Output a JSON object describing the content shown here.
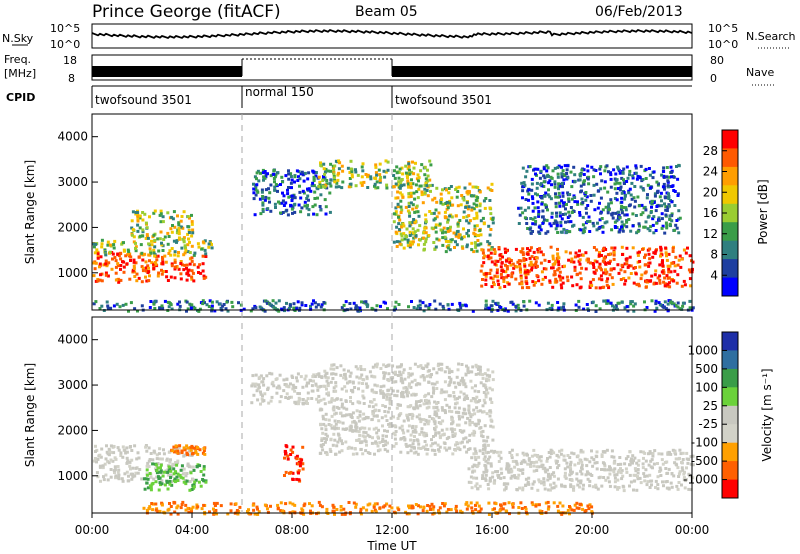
{
  "header": {
    "station": "Prince George (fitACF)",
    "beam": "Beam 05",
    "date": "06/Feb/2013"
  },
  "noise_panel": {
    "left_label": "N.Sky",
    "left_ticks": [
      "10^5",
      "10^0"
    ],
    "right_label": "N.Search",
    "right_ticks": [
      "10^5",
      "10^0"
    ]
  },
  "freq_panel": {
    "left_label_1": "Freq.",
    "left_label_2": "[MHz]",
    "left_ticks": [
      "18",
      "8"
    ],
    "right_label": "Nave",
    "right_ticks": [
      "80",
      "0"
    ]
  },
  "cpid": {
    "label": "CPID",
    "segments": [
      {
        "name": "twofsound 3501",
        "start_hour": 0,
        "end_hour": 6
      },
      {
        "name": "normal 150",
        "start_hour": 6,
        "end_hour": 12
      },
      {
        "name": "twofsound 3501",
        "start_hour": 12,
        "end_hour": 24
      }
    ]
  },
  "x_axis": {
    "label": "Time UT",
    "ticks": [
      "00:00",
      "04:00",
      "08:00",
      "12:00",
      "16:00",
      "20:00",
      "00:00"
    ]
  },
  "power_colorbar": {
    "label": "Power [dB]",
    "ticks": [
      "28",
      "24",
      "20",
      "16",
      "12",
      "8",
      "4"
    ],
    "colors": [
      "#ff0000",
      "#ff5a00",
      "#ff9e00",
      "#f0c800",
      "#9acd32",
      "#3a9d48",
      "#2f7f7f",
      "#1e3fa0",
      "#0000ff"
    ]
  },
  "velocity_colorbar": {
    "label": "Velocity [m s⁻¹]",
    "ticks": [
      "1000",
      "500",
      "100",
      "25",
      "-25",
      "-100",
      "-500",
      "-1000"
    ],
    "colors": [
      "#1e2fa8",
      "#2f6fa0",
      "#3a9d48",
      "#6bd23a",
      "#c8c8c0",
      "#d2d2c8",
      "#ffa000",
      "#ff6000",
      "#ff0000"
    ]
  },
  "chart_data": [
    {
      "type": "heatmap",
      "title": "Power",
      "xlabel": "Time UT",
      "ylabel": "Slant Range [km]",
      "xlim": [
        0,
        24
      ],
      "ylim": [
        180,
        4500
      ],
      "yticks": [
        1000,
        2000,
        3000,
        4000
      ],
      "xticks": [
        0,
        4,
        8,
        12,
        16,
        20,
        24
      ],
      "regions": [
        {
          "t0": 0.0,
          "t1": 2.2,
          "r0": 800,
          "r1": 1500,
          "level": "high"
        },
        {
          "t0": 2.2,
          "t1": 4.5,
          "r0": 850,
          "r1": 1400,
          "level": "high"
        },
        {
          "t0": 0.0,
          "t1": 4.8,
          "r0": 1400,
          "r1": 1750,
          "level": "mid"
        },
        {
          "t0": 1.5,
          "t1": 4.0,
          "r0": 1750,
          "r1": 2400,
          "level": "mid"
        },
        {
          "t0": 6.4,
          "t1": 9.5,
          "r0": 2300,
          "r1": 3300,
          "level": "low"
        },
        {
          "t0": 9.0,
          "t1": 13.5,
          "r0": 2900,
          "r1": 3500,
          "level": "mid"
        },
        {
          "t0": 12.0,
          "t1": 16.0,
          "r0": 1500,
          "r1": 3000,
          "level": "mid"
        },
        {
          "t0": 15.5,
          "t1": 24.0,
          "r0": 700,
          "r1": 1600,
          "level": "high"
        },
        {
          "t0": 17.0,
          "t1": 23.5,
          "r0": 1900,
          "r1": 3400,
          "level": "low"
        },
        {
          "t0": 0.0,
          "t1": 24.0,
          "r0": 180,
          "r1": 420,
          "level": "low"
        }
      ]
    },
    {
      "type": "heatmap",
      "title": "Velocity",
      "xlabel": "Time UT",
      "ylabel": "Slant Range [km]",
      "xlim": [
        0,
        24
      ],
      "ylim": [
        180,
        4500
      ],
      "yticks": [
        1000,
        2000,
        3000,
        4000
      ],
      "xticks": [
        0,
        4,
        8,
        12,
        16,
        20,
        24
      ],
      "regions": [
        {
          "t0": 0.0,
          "t1": 4.0,
          "r0": 900,
          "r1": 1700,
          "level": "grey"
        },
        {
          "t0": 2.0,
          "t1": 4.5,
          "r0": 700,
          "r1": 1300,
          "level": "green"
        },
        {
          "t0": 3.0,
          "t1": 4.6,
          "r0": 1500,
          "r1": 1700,
          "level": "orange"
        },
        {
          "t0": 6.3,
          "t1": 9.0,
          "r0": 2600,
          "r1": 3300,
          "level": "grey"
        },
        {
          "t0": 7.6,
          "t1": 8.4,
          "r0": 900,
          "r1": 1700,
          "level": "red"
        },
        {
          "t0": 9.0,
          "t1": 16.0,
          "r0": 1500,
          "r1": 3500,
          "level": "grey"
        },
        {
          "t0": 15.0,
          "t1": 24.0,
          "r0": 700,
          "r1": 1600,
          "level": "grey"
        },
        {
          "t0": 2.0,
          "t1": 20.0,
          "r0": 180,
          "r1": 450,
          "level": "orange"
        }
      ]
    }
  ]
}
